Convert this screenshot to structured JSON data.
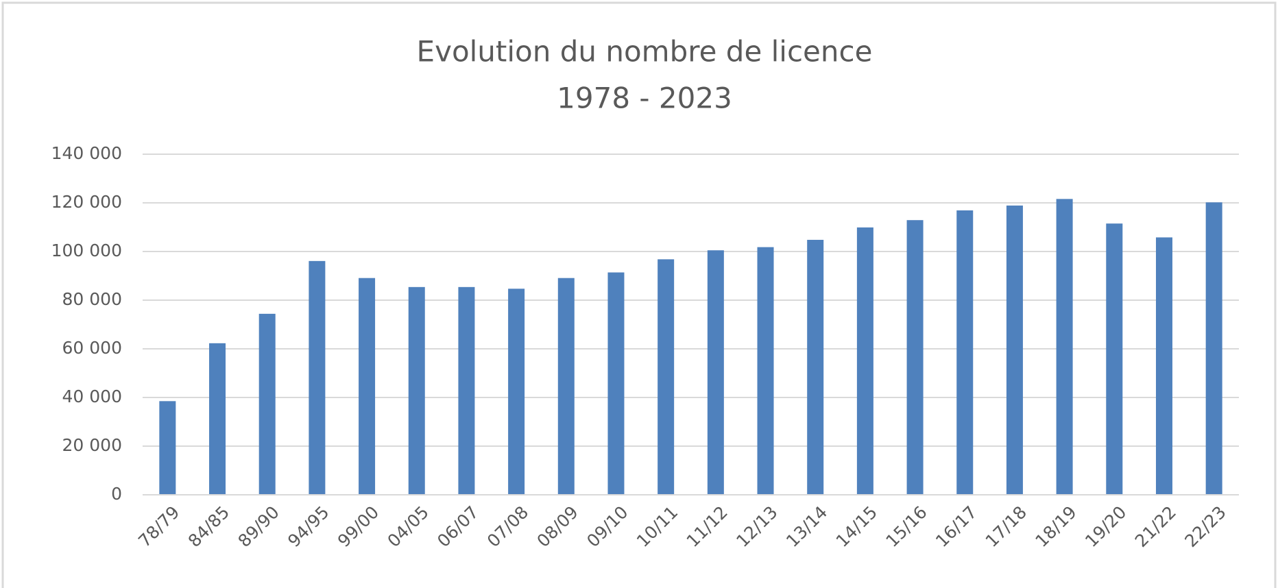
{
  "chart_data": {
    "type": "bar",
    "title": "Evolution du nombre de licence",
    "subtitle": "1978 - 2023",
    "categories": [
      "78/79",
      "84/85",
      "89/90",
      "94/95",
      "99/00",
      "04/05",
      "06/07",
      "07/08",
      "08/09",
      "09/10",
      "10/11",
      "11/12",
      "12/13",
      "13/14",
      "14/15",
      "15/16",
      "16/17",
      "17/18",
      "18/19",
      "19/20",
      "21/22",
      "22/23"
    ],
    "values": [
      38500,
      62300,
      74400,
      96100,
      89100,
      85400,
      85400,
      84700,
      89100,
      91400,
      96800,
      100500,
      101800,
      104800,
      109900,
      112900,
      116900,
      118900,
      121600,
      111500,
      105800,
      120200
    ],
    "color": "#4f81bd",
    "ylim": [
      0,
      140000
    ],
    "yticks": [
      0,
      {
        "value": 20000,
        "label": "20 000"
      },
      {
        "value": 40000,
        "label": "40 000"
      },
      {
        "value": 60000,
        "label": "60 000"
      },
      {
        "value": 80000,
        "label": "80 000"
      },
      {
        "value": 100000,
        "label": "100 000"
      },
      {
        "value": 120000,
        "label": "120 000"
      },
      {
        "value": 140000,
        "label": "140 000"
      }
    ],
    "grid": true
  }
}
